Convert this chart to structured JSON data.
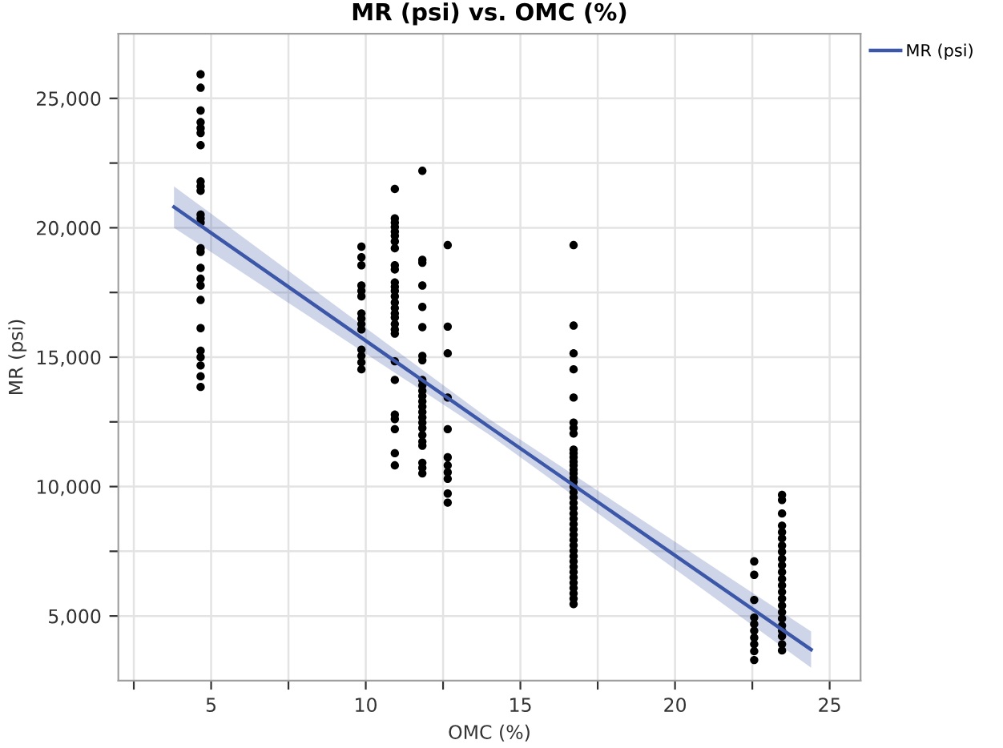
{
  "chart_data": {
    "type": "scatter",
    "title": "MR (psi) vs. OMC (%)",
    "xlabel": "OMC (%)",
    "ylabel": "MR (psi)",
    "xlim": [
      2,
      26
    ],
    "ylim": [
      2500,
      27500
    ],
    "xticks": [
      {
        "value": 2.5,
        "label": null
      },
      5,
      {
        "value": 7.5,
        "label": null
      },
      10,
      {
        "value": 12.5,
        "label": null
      },
      15,
      {
        "value": 17.5,
        "label": null
      },
      20,
      {
        "value": 22.5,
        "label": null
      },
      25
    ],
    "yticks": [
      {
        "value": 5000,
        "label": "5,000"
      },
      {
        "value": 7500,
        "label": null
      },
      {
        "value": 10000,
        "label": "10,000"
      },
      {
        "value": 12500,
        "label": null
      },
      {
        "value": 15000,
        "label": "15,000"
      },
      {
        "value": 17500,
        "label": null
      },
      {
        "value": 20000,
        "label": "20,000"
      },
      {
        "value": 22500,
        "label": null
      },
      {
        "value": 25000,
        "label": "25,000"
      }
    ],
    "grid": true,
    "legend": "top right",
    "marker": "circle",
    "series": [
      {
        "color": "#000000",
        "x": [
          4.66,
          4.66,
          4.66,
          4.66,
          4.66,
          4.66,
          4.66,
          4.66,
          4.66,
          4.66,
          4.66,
          4.66,
          4.66,
          4.66,
          4.66,
          4.66,
          4.66,
          4.66,
          4.66,
          4.66,
          4.66,
          4.66,
          4.66,
          4.66,
          4.66,
          9.86,
          9.86,
          9.86,
          9.86,
          9.86,
          9.86,
          9.86,
          9.86,
          9.86,
          9.86,
          9.86,
          9.86,
          9.86,
          9.86,
          10.94,
          10.94,
          10.94,
          10.94,
          10.94,
          10.94,
          10.94,
          10.94,
          10.94,
          10.94,
          10.94,
          10.94,
          10.94,
          10.94,
          10.94,
          10.94,
          10.94,
          10.94,
          10.94,
          10.94,
          10.94,
          10.94,
          10.94,
          10.94,
          10.94,
          10.94,
          10.94,
          10.94,
          11.83,
          11.83,
          11.83,
          11.83,
          11.83,
          11.83,
          11.83,
          11.83,
          11.83,
          11.83,
          11.83,
          11.83,
          11.83,
          11.83,
          11.83,
          11.83,
          11.83,
          11.83,
          11.83,
          11.83,
          11.83,
          11.83,
          11.83,
          11.83,
          12.65,
          12.65,
          12.65,
          12.65,
          12.65,
          12.65,
          12.65,
          12.65,
          12.65,
          12.65,
          12.65,
          16.72,
          16.72,
          16.72,
          16.72,
          16.72,
          16.72,
          16.72,
          16.72,
          16.72,
          16.72,
          16.72,
          16.72,
          16.72,
          16.72,
          16.72,
          16.72,
          16.72,
          16.72,
          16.72,
          16.72,
          16.72,
          16.72,
          16.72,
          16.72,
          16.72,
          16.72,
          16.72,
          16.72,
          16.72,
          16.72,
          16.72,
          16.72,
          16.72,
          16.72,
          16.72,
          16.72,
          16.72,
          16.72,
          16.72,
          16.72,
          22.56,
          22.56,
          22.56,
          22.56,
          22.56,
          22.56,
          22.56,
          22.56,
          22.56,
          22.56,
          23.46,
          23.46,
          23.46,
          23.46,
          23.46,
          23.46,
          23.46,
          23.46,
          23.46,
          23.46,
          23.46,
          23.46,
          23.46,
          23.46,
          23.46,
          23.46,
          23.46,
          23.46,
          23.46,
          23.46,
          23.46,
          23.46,
          23.46
        ],
        "values": [
          25930,
          25410,
          24530,
          24080,
          23850,
          23660,
          23190,
          21790,
          21600,
          21430,
          20510,
          20360,
          20200,
          19210,
          19070,
          18450,
          18030,
          17770,
          17210,
          16120,
          15250,
          15000,
          14680,
          14260,
          13850,
          19270,
          18860,
          18550,
          17770,
          17560,
          17350,
          16690,
          16490,
          16280,
          16070,
          15290,
          15050,
          14800,
          14530,
          21500,
          20360,
          20200,
          20030,
          19850,
          19690,
          19470,
          19210,
          18550,
          18390,
          17890,
          17720,
          17560,
          17350,
          17110,
          16900,
          16690,
          16530,
          16280,
          16070,
          15910,
          14840,
          14120,
          12780,
          12610,
          12220,
          11290,
          10820,
          22200,
          18760,
          18650,
          17770,
          16940,
          16160,
          15050,
          14880,
          14120,
          13910,
          13700,
          13500,
          13290,
          13090,
          12880,
          12670,
          12470,
          12260,
          11990,
          11740,
          11580,
          10920,
          10720,
          10510,
          19330,
          16180,
          15150,
          13440,
          12220,
          11130,
          10820,
          10550,
          10300,
          9730,
          9380,
          19330,
          16220,
          15150,
          14530,
          13440,
          12470,
          12260,
          12050,
          11430,
          11290,
          11130,
          10960,
          10820,
          10650,
          10510,
          10340,
          10190,
          9990,
          9780,
          9580,
          9370,
          9170,
          8960,
          8760,
          8550,
          8350,
          8140,
          7940,
          7730,
          7520,
          7310,
          7110,
          6900,
          6700,
          6490,
          6280,
          6080,
          5870,
          5670,
          5460,
          7110,
          6590,
          5620,
          4940,
          4690,
          4430,
          4160,
          3910,
          3640,
          3300,
          9680,
          9480,
          8960,
          8490,
          8240,
          8000,
          7720,
          7480,
          7210,
          6960,
          6700,
          6430,
          6180,
          5930,
          5670,
          5400,
          5150,
          4900,
          4630,
          4430,
          4220,
          3910,
          3670
        ]
      },
      {
        "type": "line",
        "name": "MR (psi)",
        "color": "#3d57a8",
        "marker": "none",
        "line_style": "solid",
        "x": [
          3.8,
          14,
          24.4
        ],
        "values": [
          20800,
          12300,
          3700
        ],
        "lower": [
          20000,
          12000,
          3000
        ],
        "upper": [
          21600,
          12600,
          4400
        ]
      }
    ]
  }
}
